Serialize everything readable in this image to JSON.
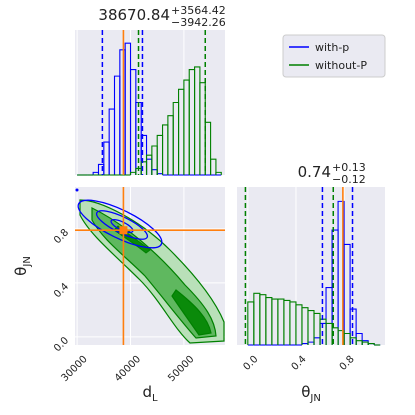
{
  "chart_data": [
    {
      "type": "histogram",
      "title_value": 38670.84,
      "title_upper": {
        "value": 3564.42,
        "label": "+3564.42"
      },
      "title_lower": {
        "value": 3942.26,
        "label": "−3942.26"
      },
      "xlim": [
        29600,
        57700
      ],
      "ylim": [
        0,
        110
      ],
      "xticks": [
        30000,
        40000,
        50000
      ],
      "bins": [
        30000,
        31000,
        32000,
        33000,
        34000,
        35000,
        36000,
        37000,
        38000,
        39000,
        40000,
        41000,
        42000,
        43000,
        44000,
        45000,
        46000,
        47000,
        48000,
        49000,
        50000,
        51000,
        52000,
        53000,
        54000,
        55000,
        56000,
        57000
      ],
      "truth": 38670.84,
      "truth_color": "#ff7f0e",
      "legend": "upper right",
      "series": [
        {
          "name": "with-p",
          "color": "#0000ff",
          "values": [
            0,
            0,
            0,
            2,
            8,
            25,
            50,
            75,
            95,
            100,
            80,
            55,
            30,
            12,
            4,
            1,
            0,
            0,
            0,
            0,
            0,
            0,
            0,
            0,
            0,
            0,
            0
          ]
        },
        {
          "name": "without-P",
          "color": "#008000",
          "quantiles": [
            41500,
            54000
          ],
          "values": [
            0,
            0,
            0,
            0,
            0,
            0,
            0,
            0,
            0,
            0,
            2,
            5,
            10,
            15,
            22,
            30,
            38,
            45,
            55,
            65,
            72,
            80,
            82,
            70,
            40,
            12,
            2
          ]
        }
      ]
    },
    {
      "type": "contour",
      "xlim": [
        29600,
        57700
      ],
      "ylim": [
        -0.06,
        1.11
      ],
      "xticks": [
        30000,
        40000,
        50000
      ],
      "yticks": [
        {
          "value": 0,
          "label": "0.0"
        },
        0.4,
        0.8
      ],
      "xlabel": {
        "main": "d",
        "sub": "L"
      },
      "ylabel": {
        "main": "θ",
        "sub": "JN"
      },
      "truth_x": 38670.84,
      "truth_y": 0.79,
      "truth_color": "#ff7f0e"
    },
    {
      "type": "histogram",
      "title_value": 0.74,
      "title_upper": {
        "value": 0.13,
        "label": "+0.13"
      },
      "title_lower": {
        "value": 0.12,
        "label": "−0.12"
      },
      "xlim": [
        -0.09,
        1.14
      ],
      "ylim": [
        0,
        110
      ],
      "xticks": [
        {
          "value": 0,
          "label": "0.0"
        },
        0.4,
        0.8
      ],
      "xlabel": {
        "main": "θ",
        "sub": "JN"
      },
      "bins": [
        0,
        0.05,
        0.1,
        0.15,
        0.2,
        0.25,
        0.3,
        0.35,
        0.4,
        0.45,
        0.5,
        0.55,
        0.6,
        0.65,
        0.7,
        0.75,
        0.8,
        0.85,
        0.9,
        0.95,
        1.0,
        1.05,
        1.1
      ],
      "truth": 0.79,
      "truth_color": "#ff7f0e",
      "series": [
        {
          "name": "with-p",
          "color": "#0000ff",
          "values": [
            0,
            0,
            0,
            0,
            0,
            0,
            0,
            0,
            0,
            1,
            2,
            5,
            15,
            40,
            80,
            100,
            70,
            25,
            8,
            3,
            1,
            0
          ]
        },
        {
          "name": "without-P",
          "color": "#008000",
          "quantiles": [
            -0.02,
            0.71
          ],
          "values": [
            30,
            36,
            35,
            33,
            32,
            32,
            31,
            30,
            28,
            26,
            24,
            22,
            18,
            15,
            12,
            10,
            8,
            5,
            3,
            2,
            1,
            0
          ]
        }
      ]
    }
  ]
}
